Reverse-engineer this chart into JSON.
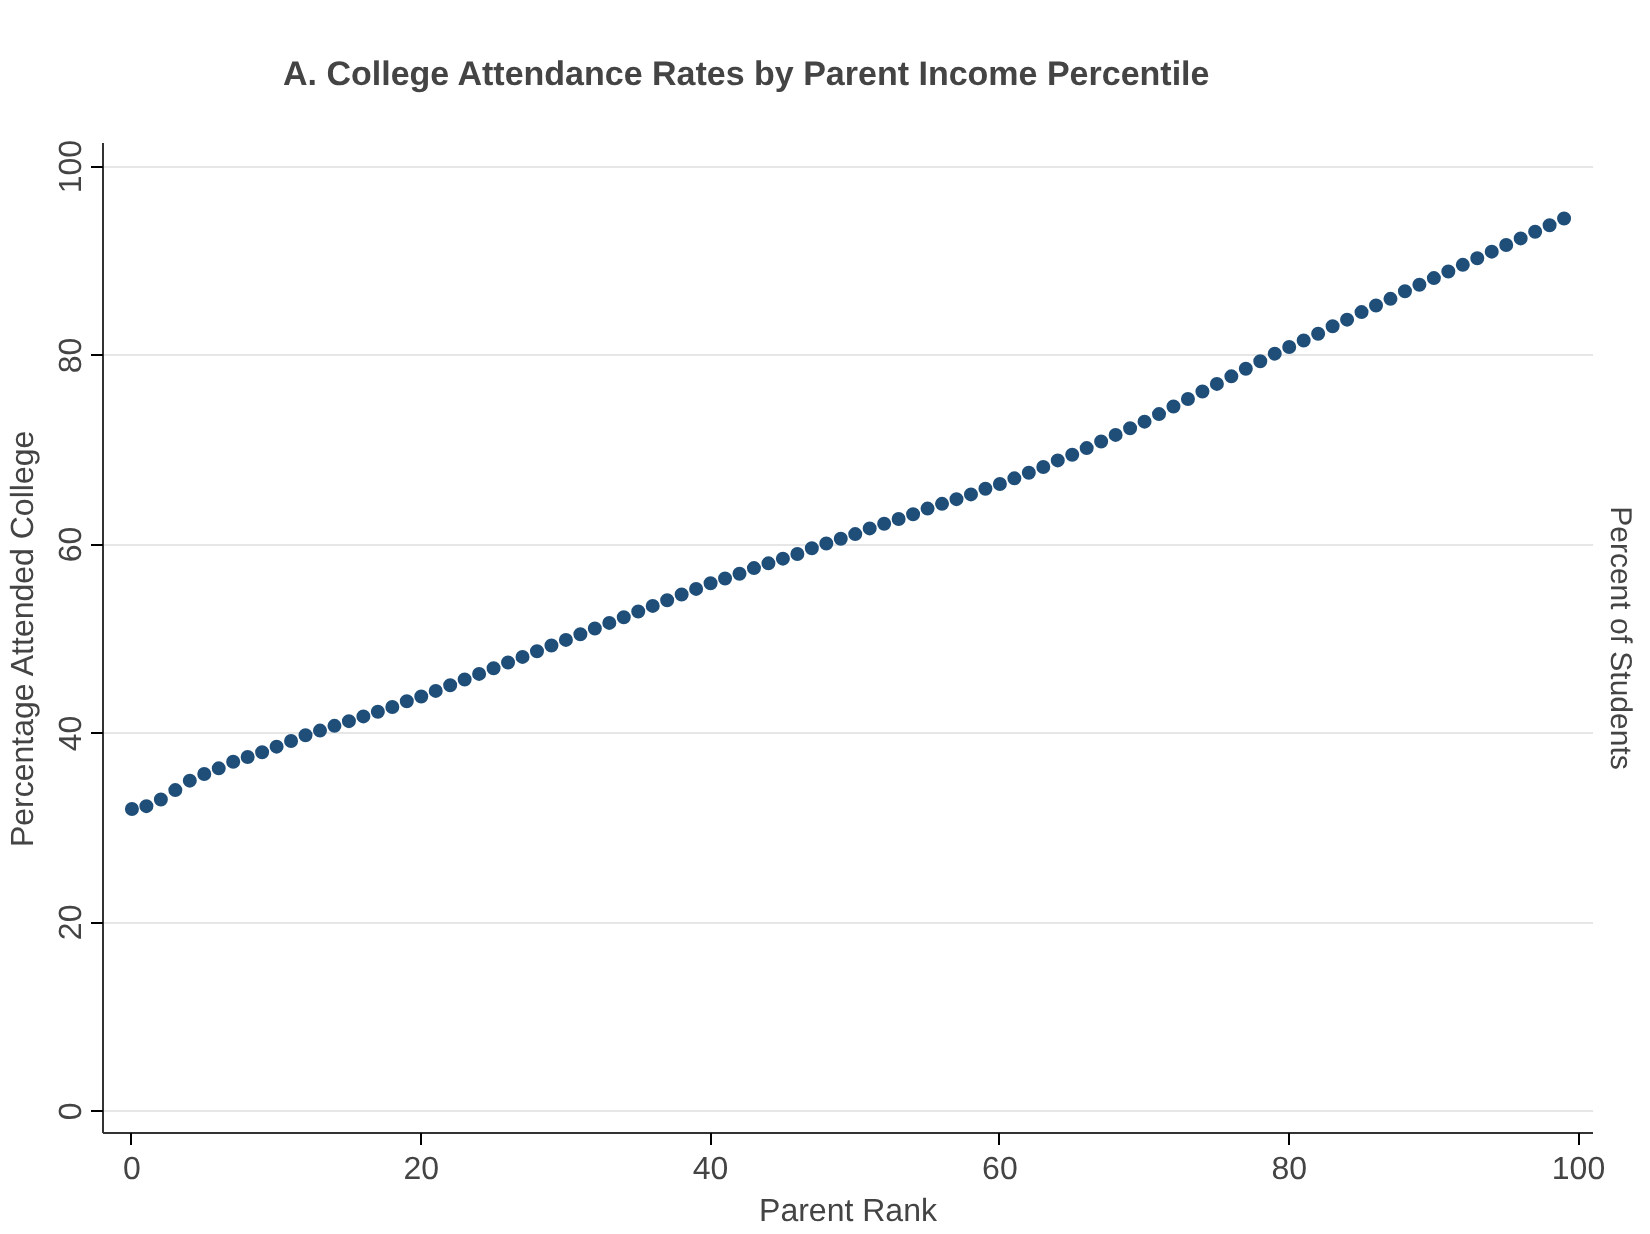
{
  "chart_data": {
    "type": "scatter",
    "title": "A. College Attendance Rates by Parent Income Percentile",
    "xlabel": "Parent Rank",
    "ylabel": "Percentage Attended College",
    "annotations": [
      "Percent of Students"
    ],
    "x": [
      0,
      1,
      2,
      3,
      4,
      5,
      6,
      7,
      8,
      9,
      10,
      11,
      12,
      13,
      14,
      15,
      16,
      17,
      18,
      19,
      20,
      21,
      22,
      23,
      24,
      25,
      26,
      27,
      28,
      29,
      30,
      31,
      32,
      33,
      34,
      35,
      36,
      37,
      38,
      39,
      40,
      41,
      42,
      43,
      44,
      45,
      46,
      47,
      48,
      49,
      50,
      51,
      52,
      53,
      54,
      55,
      56,
      57,
      58,
      59,
      60,
      61,
      62,
      63,
      64,
      65,
      66,
      67,
      68,
      69,
      70,
      71,
      72,
      73,
      74,
      75,
      76,
      77,
      78,
      79,
      80,
      81,
      82,
      83,
      84,
      85,
      86,
      87,
      88,
      89,
      90,
      91,
      92,
      93,
      94,
      95,
      96,
      97,
      98,
      99
    ],
    "series": [
      {
        "color": "#1f4e79",
        "values": [
          32.0,
          32.3,
          33.0,
          34.0,
          35.0,
          35.7,
          36.3,
          37.0,
          37.5,
          38.0,
          38.6,
          39.2,
          39.8,
          40.3,
          40.8,
          41.3,
          41.8,
          42.3,
          42.8,
          43.4,
          43.9,
          44.5,
          45.1,
          45.7,
          46.3,
          46.9,
          47.5,
          48.1,
          48.7,
          49.3,
          49.9,
          50.5,
          51.1,
          51.7,
          52.3,
          52.9,
          53.5,
          54.1,
          54.7,
          55.3,
          55.9,
          56.4,
          56.9,
          57.5,
          58.0,
          58.5,
          59.0,
          59.6,
          60.1,
          60.6,
          61.1,
          61.7,
          62.2,
          62.7,
          63.2,
          63.8,
          64.3,
          64.8,
          65.3,
          65.9,
          66.4,
          67.0,
          67.6,
          68.2,
          68.9,
          69.5,
          70.2,
          70.9,
          71.6,
          72.3,
          73.0,
          73.8,
          74.6,
          75.4,
          76.2,
          77.0,
          77.8,
          78.6,
          79.4,
          80.2,
          80.9,
          81.6,
          82.3,
          83.1,
          83.8,
          84.6,
          85.3,
          86.0,
          86.8,
          87.5,
          88.2,
          88.9,
          89.6,
          90.3,
          91.0,
          91.7,
          92.4,
          93.1,
          93.8,
          94.5
        ]
      }
    ],
    "xlim": [
      -2,
      101
    ],
    "ylim": [
      -2.3,
      102.5
    ],
    "xticks": [
      0,
      20,
      40,
      60,
      80,
      100
    ],
    "yticks": [
      0,
      20,
      40,
      60,
      80,
      100
    ],
    "grid": "y",
    "marker": "circle"
  }
}
